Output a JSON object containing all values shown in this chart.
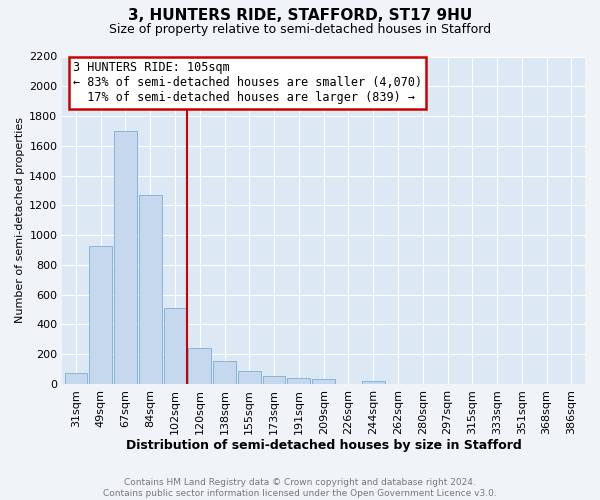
{
  "title": "3, HUNTERS RIDE, STAFFORD, ST17 9HU",
  "subtitle": "Size of property relative to semi-detached houses in Stafford",
  "xlabel": "Distribution of semi-detached houses by size in Stafford",
  "ylabel": "Number of semi-detached properties",
  "categories": [
    "31sqm",
    "49sqm",
    "67sqm",
    "84sqm",
    "102sqm",
    "120sqm",
    "138sqm",
    "155sqm",
    "173sqm",
    "191sqm",
    "209sqm",
    "226sqm",
    "244sqm",
    "262sqm",
    "280sqm",
    "297sqm",
    "315sqm",
    "333sqm",
    "351sqm",
    "368sqm",
    "386sqm"
  ],
  "values": [
    75,
    925,
    1700,
    1270,
    510,
    240,
    155,
    90,
    55,
    40,
    30,
    0,
    20,
    0,
    0,
    0,
    0,
    0,
    0,
    0,
    0
  ],
  "bar_color": "#c5d8ee",
  "bar_edge_color": "#7bafd4",
  "property_label": "3 HUNTERS RIDE: 105sqm",
  "pct_smaller": 83,
  "pct_smaller_n": 4070,
  "pct_larger": 17,
  "pct_larger_n": 839,
  "vline_color": "#cc0000",
  "vline_x_index": 4.5,
  "annotation_box_color": "#cc0000",
  "ylim": [
    0,
    2200
  ],
  "yticks": [
    0,
    200,
    400,
    600,
    800,
    1000,
    1200,
    1400,
    1600,
    1800,
    2000,
    2200
  ],
  "bg_color": "#f0f4f8",
  "plot_bg_color": "#dce8f4",
  "footer": "Contains HM Land Registry data © Crown copyright and database right 2024.\nContains public sector information licensed under the Open Government Licence v3.0.",
  "footer_color": "#777777",
  "title_fontsize": 11,
  "subtitle_fontsize": 9,
  "xlabel_fontsize": 9,
  "ylabel_fontsize": 8,
  "tick_fontsize": 8,
  "annot_fontsize": 8.5
}
